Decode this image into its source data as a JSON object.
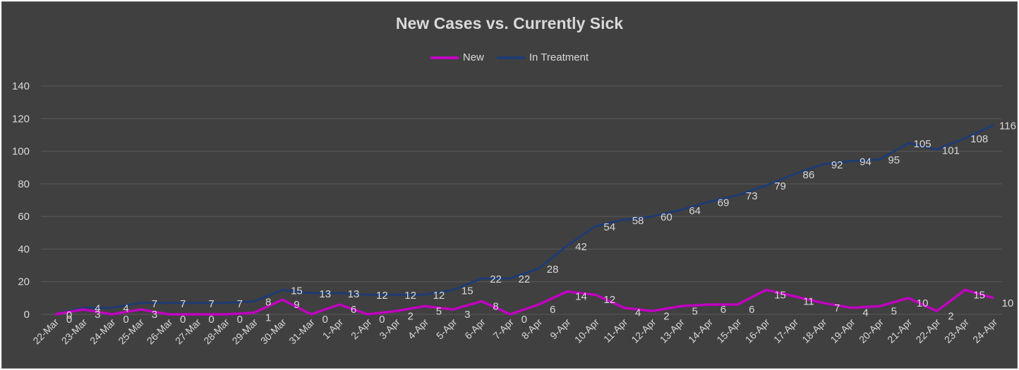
{
  "chart_data": {
    "type": "line",
    "title": "New Cases vs. Currently Sick",
    "categories": [
      "22-Mar",
      "23-Mar",
      "24-Mar",
      "25-Mar",
      "26-Mar",
      "27-Mar",
      "28-Mar",
      "29-Mar",
      "30-Mar",
      "31-Mar",
      "1-Apr",
      "2-Apr",
      "3-Apr",
      "4-Apr",
      "5-Apr",
      "6-Apr",
      "7-Apr",
      "8-Apr",
      "9-Apr",
      "10-Apr",
      "11-Apr",
      "12-Apr",
      "13-Apr",
      "14-Apr",
      "15-Apr",
      "16-Apr",
      "17-Apr",
      "18-Apr",
      "19-Apr",
      "20-Apr",
      "21-Apr",
      "22-Apr",
      "23-Apr",
      "24-Apr"
    ],
    "series": [
      {
        "name": "New",
        "color": "#c000c0",
        "values": [
          0,
          3,
          0,
          3,
          0,
          0,
          0,
          1,
          9,
          0,
          6,
          0,
          2,
          5,
          3,
          8,
          0,
          6,
          14,
          12,
          4,
          2,
          5,
          6,
          6,
          15,
          11,
          7,
          4,
          5,
          10,
          2,
          15,
          10
        ],
        "data_labels": [
          "0",
          "3",
          "0",
          "3",
          "0",
          "0",
          "0",
          "1",
          "9",
          "0",
          "6",
          "0",
          "2",
          "5",
          "3",
          "8",
          "0",
          "6",
          "14",
          "12",
          "4",
          "2",
          "5",
          "6",
          "6",
          "15",
          "11",
          "7",
          "4",
          "5",
          "10",
          "2",
          "15",
          "10"
        ]
      },
      {
        "name": "In Treatment",
        "color": "#1f3b73",
        "values": [
          0,
          4,
          4,
          7,
          7,
          7,
          7,
          8,
          15,
          13,
          13,
          12,
          12,
          12,
          15,
          22,
          22,
          28,
          42,
          54,
          58,
          60,
          64,
          69,
          73,
          79,
          86,
          92,
          94,
          95,
          105,
          101,
          108,
          116
        ],
        "data_labels": [
          "0",
          "4",
          "4",
          "7",
          "7",
          "7",
          "7",
          "8",
          "15",
          "13",
          "13",
          "12",
          "12",
          "12",
          "15",
          "22",
          "22",
          "28",
          "42",
          "54",
          "58",
          "60",
          "64",
          "69",
          "73",
          "79",
          "86",
          "92",
          "94",
          "95",
          "105",
          "101",
          "108",
          "116"
        ]
      }
    ],
    "y_ticks": [
      "0",
      "20",
      "40",
      "60",
      "80",
      "100",
      "120",
      "140"
    ],
    "ylim": [
      0,
      140
    ],
    "grid": true,
    "legend_position": "top"
  }
}
